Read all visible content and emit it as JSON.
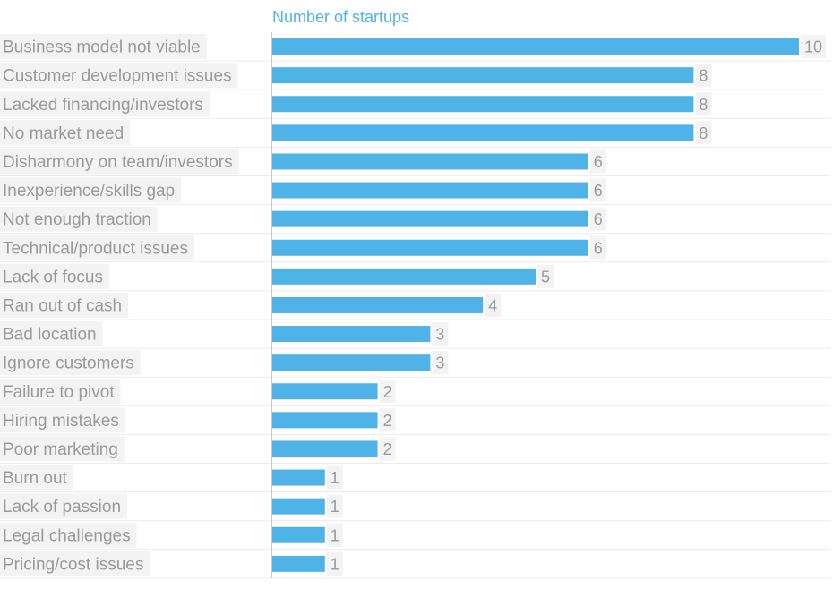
{
  "chart_data": {
    "type": "bar",
    "orientation": "horizontal",
    "title": "",
    "xlabel": "Number of startups",
    "ylabel": "",
    "xlim": [
      0,
      10
    ],
    "grid": true,
    "legend": "none",
    "categories": [
      "Business model not viable",
      "Customer development issues",
      "Lacked financing/investors",
      "No market need",
      "Disharmony on team/investors",
      "Inexperience/skills gap",
      "Not enough traction",
      "Technical/product issues",
      "Lack of focus",
      "Ran out of cash",
      "Bad location",
      "Ignore customers",
      "Failure to pivot",
      "Hiring mistakes",
      "Poor marketing",
      "Burn out",
      "Lack of passion",
      "Legal challenges",
      "Pricing/cost issues"
    ],
    "values": [
      10,
      8,
      8,
      8,
      6,
      6,
      6,
      6,
      5,
      4,
      3,
      3,
      2,
      2,
      2,
      1,
      1,
      1,
      1
    ],
    "colors": {
      "bar": "#4fb3e8",
      "axis_title": "#4fb3e8",
      "label_text": "#9a9a9a",
      "label_bg": "#f3f3f3",
      "gridline": "#ececec",
      "axis_line": "#c8c8c8"
    }
  }
}
